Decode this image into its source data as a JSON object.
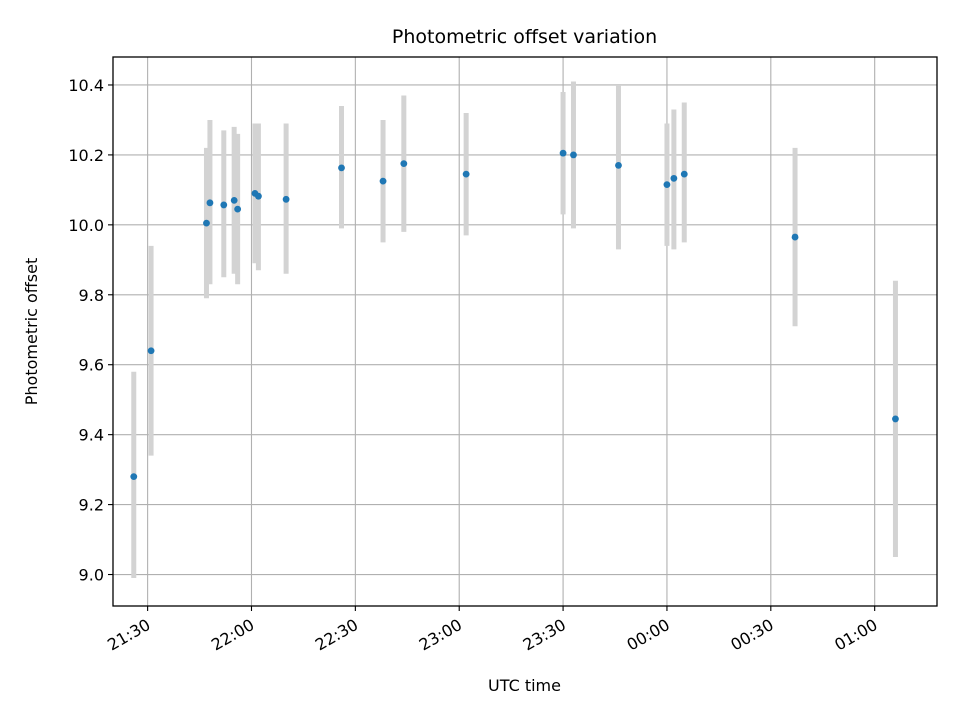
{
  "chart_data": {
    "type": "scatter",
    "title": "Photometric offset variation",
    "xlabel": "UTC time",
    "ylabel": "Photometric offset",
    "x_axis": {
      "kind": "time",
      "range": [
        "21:20",
        "01:18"
      ],
      "ticks": [
        "21:30",
        "22:00",
        "22:30",
        "23:00",
        "23:30",
        "00:00",
        "00:30",
        "01:00"
      ]
    },
    "y_axis": {
      "range": [
        8.91,
        10.48
      ],
      "ticks": [
        "9.0",
        "9.2",
        "9.4",
        "9.6",
        "9.8",
        "10.0",
        "10.2",
        "10.4"
      ]
    },
    "grid": true,
    "legend": "none",
    "colors": {
      "point": "#1f77b4",
      "errorbar": "#d3d3d3",
      "grid": "#b0b0b0"
    },
    "points": [
      {
        "x": "21:26",
        "y": 9.28,
        "lo": 8.99,
        "hi": 9.58
      },
      {
        "x": "21:31",
        "y": 9.64,
        "lo": 9.34,
        "hi": 9.94
      },
      {
        "x": "21:47",
        "y": 10.005,
        "lo": 9.79,
        "hi": 10.22
      },
      {
        "x": "21:48",
        "y": 10.063,
        "lo": 9.83,
        "hi": 10.3
      },
      {
        "x": "21:52",
        "y": 10.057,
        "lo": 9.85,
        "hi": 10.27
      },
      {
        "x": "21:55",
        "y": 10.07,
        "lo": 9.86,
        "hi": 10.28
      },
      {
        "x": "21:56",
        "y": 10.045,
        "lo": 9.83,
        "hi": 10.26
      },
      {
        "x": "22:01",
        "y": 10.09,
        "lo": 9.89,
        "hi": 10.29
      },
      {
        "x": "22:02",
        "y": 10.082,
        "lo": 9.87,
        "hi": 10.29
      },
      {
        "x": "22:10",
        "y": 10.073,
        "lo": 9.86,
        "hi": 10.29
      },
      {
        "x": "22:26",
        "y": 10.163,
        "lo": 9.99,
        "hi": 10.34
      },
      {
        "x": "22:38",
        "y": 10.125,
        "lo": 9.95,
        "hi": 10.3
      },
      {
        "x": "22:44",
        "y": 10.175,
        "lo": 9.98,
        "hi": 10.37
      },
      {
        "x": "23:02",
        "y": 10.145,
        "lo": 9.97,
        "hi": 10.32
      },
      {
        "x": "23:30",
        "y": 10.205,
        "lo": 10.03,
        "hi": 10.38
      },
      {
        "x": "23:33",
        "y": 10.2,
        "lo": 9.99,
        "hi": 10.41
      },
      {
        "x": "23:46",
        "y": 10.17,
        "lo": 9.93,
        "hi": 10.4
      },
      {
        "x": "00:00",
        "y": 10.115,
        "lo": 9.94,
        "hi": 10.29
      },
      {
        "x": "00:02",
        "y": 10.133,
        "lo": 9.93,
        "hi": 10.33
      },
      {
        "x": "00:05",
        "y": 10.145,
        "lo": 9.95,
        "hi": 10.35
      },
      {
        "x": "00:37",
        "y": 9.965,
        "lo": 9.71,
        "hi": 10.22
      },
      {
        "x": "01:06",
        "y": 9.445,
        "lo": 9.05,
        "hi": 9.84
      }
    ]
  }
}
